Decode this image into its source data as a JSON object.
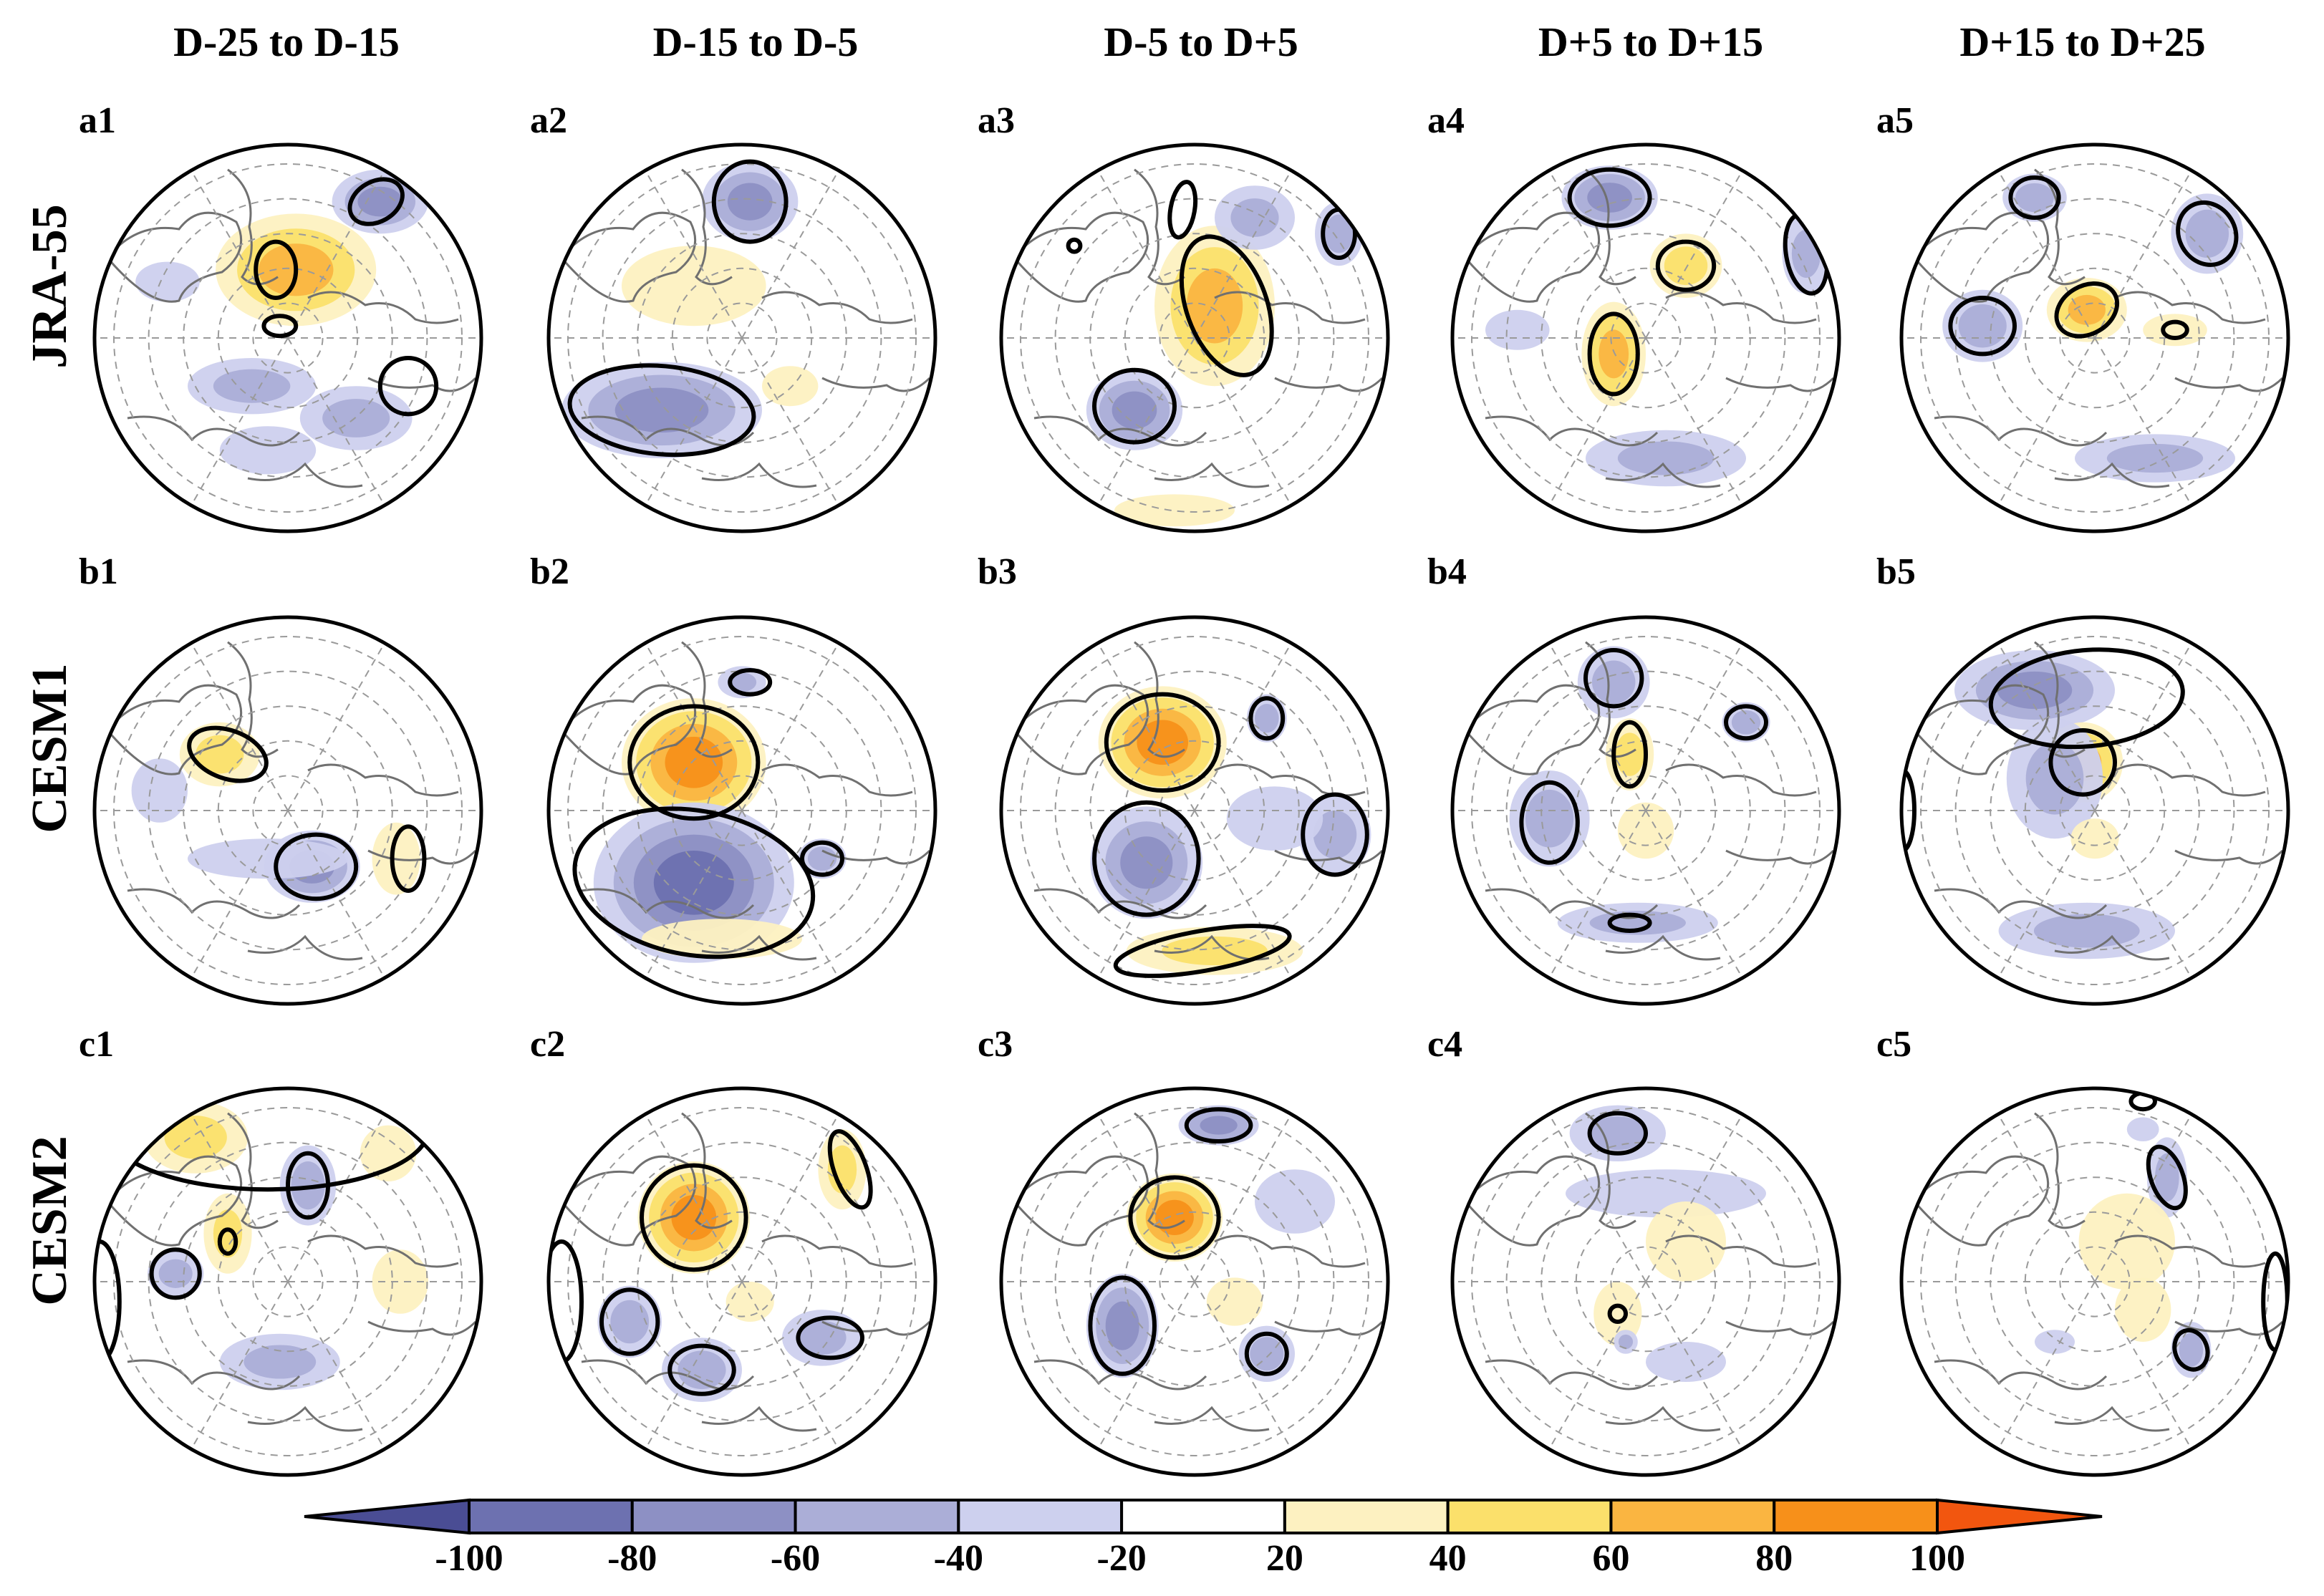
{
  "chart_data": {
    "type": "polar-map-panels",
    "columns": [
      "D-25 to D-15",
      "D-15 to D-5",
      "D-5 to D+5",
      "D+5 to D+15",
      "D+15 to D+25"
    ],
    "rows": [
      {
        "name": "JRA-55",
        "panels": [
          "a1",
          "a2",
          "a3",
          "a4",
          "a5"
        ]
      },
      {
        "name": "CESM1",
        "panels": [
          "b1",
          "b2",
          "b3",
          "b4",
          "b5"
        ]
      },
      {
        "name": "CESM2",
        "panels": [
          "c1",
          "c2",
          "c3",
          "c4",
          "c5"
        ]
      }
    ],
    "colorbar": {
      "levels": [
        -100,
        -80,
        -60,
        -40,
        -20,
        20,
        40,
        60,
        80,
        100
      ],
      "tick_labels": [
        "-100",
        "-80",
        "-60",
        "-40",
        "-20",
        "20",
        "40",
        "60",
        "80",
        "100"
      ],
      "colors": [
        "#4a4d94",
        "#6d71b0",
        "#8d90c4",
        "#abaed7",
        "#cdd0ee",
        "#ffffff",
        "#fdf1c1",
        "#fbe06b",
        "#fab541",
        "#f7901a",
        "#f2560f"
      ],
      "extend": "both"
    },
    "anomalies": [
      [
        [
          [
            0.52,
            0.33,
            0.2,
            0.14,
            0.5
          ],
          [
            0.73,
            0.16,
            0.12,
            0.08,
            -0.55
          ],
          [
            0.41,
            0.62,
            0.16,
            0.07,
            -0.4
          ],
          [
            0.67,
            0.7,
            0.14,
            0.08,
            -0.45
          ],
          [
            0.2,
            0.36,
            0.08,
            0.05,
            -0.25
          ],
          [
            0.45,
            0.78,
            0.12,
            0.06,
            -0.25
          ]
        ],
        [
          [
            0.52,
            0.16,
            0.12,
            0.1,
            -0.55
          ],
          [
            0.3,
            0.68,
            0.25,
            0.12,
            -0.6
          ],
          [
            0.38,
            0.37,
            0.18,
            0.1,
            0.25
          ],
          [
            0.62,
            0.62,
            0.07,
            0.05,
            0.2
          ]
        ],
        [
          [
            0.55,
            0.42,
            0.15,
            0.2,
            0.65
          ],
          [
            0.35,
            0.68,
            0.12,
            0.1,
            -0.5
          ],
          [
            0.65,
            0.2,
            0.1,
            0.08,
            -0.35
          ],
          [
            0.86,
            0.24,
            0.06,
            0.08,
            -0.4
          ],
          [
            0.45,
            0.93,
            0.15,
            0.04,
            0.2
          ]
        ],
        [
          [
            0.41,
            0.15,
            0.12,
            0.08,
            -0.5
          ],
          [
            0.6,
            0.32,
            0.09,
            0.08,
            0.45
          ],
          [
            0.42,
            0.54,
            0.08,
            0.13,
            0.55
          ],
          [
            0.9,
            0.29,
            0.06,
            0.1,
            -0.45
          ],
          [
            0.55,
            0.8,
            0.2,
            0.07,
            -0.3
          ],
          [
            0.18,
            0.48,
            0.08,
            0.05,
            -0.2
          ]
        ],
        [
          [
            0.35,
            0.15,
            0.08,
            0.06,
            -0.45
          ],
          [
            0.78,
            0.24,
            0.09,
            0.1,
            -0.4
          ],
          [
            0.22,
            0.47,
            0.1,
            0.09,
            -0.4
          ],
          [
            0.48,
            0.43,
            0.1,
            0.08,
            0.55
          ],
          [
            0.65,
            0.8,
            0.2,
            0.06,
            -0.3
          ],
          [
            0.7,
            0.48,
            0.08,
            0.04,
            0.15
          ]
        ]
      ],
      [
        [
          [
            0.33,
            0.36,
            0.1,
            0.08,
            0.4
          ],
          [
            0.56,
            0.64,
            0.12,
            0.09,
            -0.55
          ],
          [
            0.77,
            0.62,
            0.06,
            0.09,
            0.25
          ],
          [
            0.18,
            0.45,
            0.07,
            0.08,
            -0.2
          ],
          [
            0.45,
            0.62,
            0.2,
            0.05,
            -0.2
          ]
        ],
        [
          [
            0.38,
            0.38,
            0.18,
            0.16,
            0.85
          ],
          [
            0.38,
            0.68,
            0.25,
            0.2,
            -0.75
          ],
          [
            0.45,
            0.82,
            0.2,
            0.05,
            0.25
          ],
          [
            0.5,
            0.18,
            0.06,
            0.04,
            -0.3
          ],
          [
            0.7,
            0.62,
            0.06,
            0.05,
            -0.3
          ]
        ],
        [
          [
            0.42,
            0.33,
            0.16,
            0.14,
            0.7
          ],
          [
            0.38,
            0.63,
            0.14,
            0.14,
            -0.65
          ],
          [
            0.55,
            0.85,
            0.22,
            0.06,
            0.3
          ],
          [
            0.68,
            0.27,
            0.05,
            0.06,
            -0.3
          ],
          [
            0.85,
            0.56,
            0.09,
            0.1,
            -0.35
          ],
          [
            0.7,
            0.52,
            0.12,
            0.08,
            -0.2
          ]
        ],
        [
          [
            0.42,
            0.18,
            0.09,
            0.09,
            -0.45
          ],
          [
            0.46,
            0.36,
            0.06,
            0.09,
            0.35
          ],
          [
            0.26,
            0.52,
            0.1,
            0.12,
            -0.45
          ],
          [
            0.75,
            0.28,
            0.06,
            0.05,
            -0.35
          ],
          [
            0.48,
            0.78,
            0.2,
            0.05,
            -0.3
          ],
          [
            0.5,
            0.55,
            0.07,
            0.07,
            0.2
          ]
        ],
        [
          [
            0.35,
            0.2,
            0.2,
            0.1,
            -0.6
          ],
          [
            0.47,
            0.38,
            0.1,
            0.1,
            0.55
          ],
          [
            0.4,
            0.42,
            0.12,
            0.15,
            -0.35
          ],
          [
            0.48,
            0.8,
            0.22,
            0.07,
            -0.3
          ],
          [
            0.5,
            0.57,
            0.06,
            0.05,
            0.2
          ]
        ]
      ],
      [
        [
          [
            0.27,
            0.14,
            0.13,
            0.09,
            0.3
          ],
          [
            0.22,
            0.48,
            0.07,
            0.06,
            -0.45
          ],
          [
            0.55,
            0.26,
            0.07,
            0.1,
            -0.4
          ],
          [
            0.35,
            0.38,
            0.06,
            0.1,
            0.3
          ],
          [
            0.48,
            0.7,
            0.15,
            0.07,
            -0.3
          ],
          [
            0.75,
            0.18,
            0.07,
            0.07,
            0.25
          ],
          [
            0.78,
            0.5,
            0.07,
            0.08,
            0.2
          ]
        ],
        [
          [
            0.38,
            0.34,
            0.14,
            0.14,
            0.85
          ],
          [
            0.22,
            0.6,
            0.08,
            0.09,
            -0.45
          ],
          [
            0.4,
            0.72,
            0.1,
            0.08,
            -0.45
          ],
          [
            0.7,
            0.64,
            0.1,
            0.07,
            -0.35
          ],
          [
            0.75,
            0.22,
            0.06,
            0.1,
            0.3
          ],
          [
            0.52,
            0.55,
            0.06,
            0.05,
            0.2
          ]
        ],
        [
          [
            0.45,
            0.34,
            0.12,
            0.11,
            0.7
          ],
          [
            0.32,
            0.61,
            0.09,
            0.13,
            -0.55
          ],
          [
            0.56,
            0.11,
            0.1,
            0.05,
            -0.5
          ],
          [
            0.68,
            0.68,
            0.07,
            0.07,
            -0.45
          ],
          [
            0.75,
            0.3,
            0.1,
            0.08,
            -0.25
          ],
          [
            0.6,
            0.55,
            0.07,
            0.06,
            0.2
          ]
        ],
        [
          [
            0.43,
            0.13,
            0.12,
            0.07,
            -0.4
          ],
          [
            0.55,
            0.28,
            0.25,
            0.06,
            -0.25
          ],
          [
            0.43,
            0.58,
            0.06,
            0.08,
            0.2
          ],
          [
            0.6,
            0.4,
            0.1,
            0.1,
            0.15
          ],
          [
            0.6,
            0.7,
            0.1,
            0.05,
            -0.2
          ],
          [
            0.45,
            0.65,
            0.03,
            0.03,
            -0.3
          ]
        ],
        [
          [
            0.68,
            0.24,
            0.05,
            0.1,
            -0.45
          ],
          [
            0.62,
            0.57,
            0.07,
            0.08,
            0.25
          ],
          [
            0.74,
            0.67,
            0.05,
            0.07,
            -0.3
          ],
          [
            0.58,
            0.4,
            0.12,
            0.12,
            0.15
          ],
          [
            0.62,
            0.12,
            0.04,
            0.03,
            -0.2
          ],
          [
            0.4,
            0.65,
            0.05,
            0.03,
            -0.2
          ]
        ]
      ]
    ],
    "significance_contours": [
      [
        [
          [
            0.47,
            0.33,
            0.05,
            0.07,
            0
          ],
          [
            0.72,
            0.16,
            0.07,
            0.05,
            -30
          ],
          [
            0.48,
            0.47,
            0.04,
            0.025,
            0
          ],
          [
            0.8,
            0.62,
            0.07,
            0.07,
            0
          ]
        ],
        [
          [
            0.52,
            0.16,
            0.09,
            0.1,
            0
          ],
          [
            0.3,
            0.68,
            0.23,
            0.11,
            5
          ]
        ],
        [
          [
            0.58,
            0.42,
            0.1,
            0.18,
            -20
          ],
          [
            0.35,
            0.67,
            0.1,
            0.09,
            0
          ],
          [
            0.47,
            0.18,
            0.03,
            0.07,
            10
          ],
          [
            0.86,
            0.24,
            0.04,
            0.06,
            0
          ],
          [
            0.2,
            0.27,
            0.015,
            0.015,
            0
          ]
        ],
        [
          [
            0.41,
            0.15,
            0.1,
            0.07,
            0
          ],
          [
            0.6,
            0.32,
            0.07,
            0.06,
            0
          ],
          [
            0.42,
            0.54,
            0.06,
            0.1,
            0
          ],
          [
            0.9,
            0.29,
            0.05,
            0.1,
            -10
          ]
        ],
        [
          [
            0.35,
            0.15,
            0.06,
            0.05,
            0
          ],
          [
            0.78,
            0.24,
            0.07,
            0.08,
            -30
          ],
          [
            0.22,
            0.47,
            0.08,
            0.07,
            0
          ],
          [
            0.48,
            0.43,
            0.08,
            0.06,
            -30
          ],
          [
            0.7,
            0.48,
            0.03,
            0.02,
            0
          ]
        ]
      ],
      [
        [
          [
            0.35,
            0.36,
            0.1,
            0.06,
            20
          ],
          [
            0.57,
            0.64,
            0.1,
            0.08,
            0
          ],
          [
            0.8,
            0.62,
            0.04,
            0.08,
            0
          ]
        ],
        [
          [
            0.38,
            0.38,
            0.16,
            0.14,
            0
          ],
          [
            0.38,
            0.68,
            0.3,
            0.18,
            10
          ],
          [
            0.52,
            0.18,
            0.05,
            0.03,
            0
          ],
          [
            0.7,
            0.62,
            0.05,
            0.04,
            0
          ],
          [
            0.05,
            0.9,
            0.1,
            0.12,
            -40
          ]
        ],
        [
          [
            0.42,
            0.33,
            0.14,
            0.12,
            0
          ],
          [
            0.38,
            0.62,
            0.13,
            0.14,
            0
          ],
          [
            0.52,
            0.85,
            0.22,
            0.05,
            -10
          ],
          [
            0.68,
            0.27,
            0.04,
            0.05,
            0
          ],
          [
            0.85,
            0.56,
            0.08,
            0.1,
            0
          ]
        ],
        [
          [
            0.42,
            0.17,
            0.07,
            0.07,
            0
          ],
          [
            0.46,
            0.36,
            0.04,
            0.08,
            0
          ],
          [
            0.26,
            0.53,
            0.07,
            0.1,
            0
          ],
          [
            0.75,
            0.28,
            0.05,
            0.04,
            0
          ],
          [
            0.46,
            0.78,
            0.05,
            0.02,
            0
          ]
        ],
        [
          [
            0.48,
            0.22,
            0.24,
            0.12,
            -5
          ],
          [
            0.47,
            0.38,
            0.08,
            0.08,
            0
          ],
          [
            0.02,
            0.5,
            0.03,
            0.1,
            0
          ]
        ]
      ],
      [
        [
          [
            0.45,
            0.12,
            0.4,
            0.15,
            0
          ],
          [
            0.22,
            0.48,
            0.06,
            0.06,
            0
          ],
          [
            0.55,
            0.26,
            0.05,
            0.08,
            0
          ],
          [
            0.35,
            0.4,
            0.02,
            0.03,
            0
          ],
          [
            0.03,
            0.55,
            0.05,
            0.15,
            0
          ]
        ],
        [
          [
            0.38,
            0.34,
            0.13,
            0.13,
            0
          ],
          [
            0.22,
            0.6,
            0.07,
            0.08,
            0
          ],
          [
            0.4,
            0.72,
            0.08,
            0.06,
            0
          ],
          [
            0.72,
            0.64,
            0.08,
            0.05,
            0
          ],
          [
            0.77,
            0.22,
            0.04,
            0.1,
            -20
          ],
          [
            0.05,
            0.55,
            0.05,
            0.15,
            0
          ]
        ],
        [
          [
            0.45,
            0.34,
            0.11,
            0.1,
            0
          ],
          [
            0.32,
            0.61,
            0.08,
            0.12,
            0
          ],
          [
            0.56,
            0.11,
            0.08,
            0.04,
            0
          ],
          [
            0.68,
            0.68,
            0.05,
            0.05,
            0
          ]
        ],
        [
          [
            0.43,
            0.13,
            0.07,
            0.05,
            0
          ],
          [
            0.43,
            0.58,
            0.02,
            0.02,
            0
          ]
        ],
        [
          [
            0.68,
            0.24,
            0.04,
            0.08,
            -20
          ],
          [
            0.74,
            0.67,
            0.04,
            0.05,
            -20
          ],
          [
            0.62,
            0.05,
            0.03,
            0.02,
            0
          ],
          [
            0.95,
            0.55,
            0.03,
            0.12,
            0
          ]
        ]
      ]
    ]
  }
}
